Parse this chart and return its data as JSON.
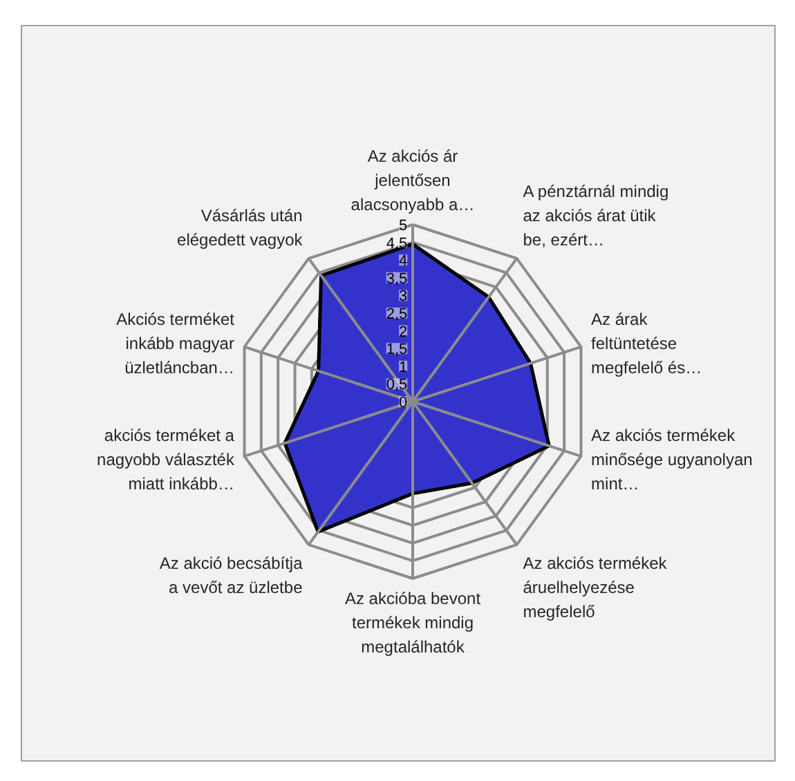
{
  "chart_data": {
    "type": "radar",
    "categories": [
      "Az akciós ár jelentősen alacsonyabb a…",
      "A pénztárnál mindig az akciós árat ütik be, ezért…",
      "Az árak feltüntetése megfelelő és…",
      "Az akciós termékek minősége ugyanolyan mint…",
      "Az akciós termékek áruelhelyezése megfelelő",
      "Az akcióba bevont termékek mindig megtalálhatók",
      "Az akció becsábítja a vevőt az üzletbe",
      "akciós terméket a nagyobb választék miatt inkább…",
      "Akciós terméket inkább magyar üzletláncban…",
      "Vásárlás után elégedett vagyok"
    ],
    "series": [
      {
        "color": "#3333cc",
        "values": [
          4.45,
          3.65,
          3.5,
          4.05,
          2.85,
          2.6,
          4.55,
          3.8,
          2.8,
          4.4
        ]
      }
    ],
    "ylim": [
      0,
      5
    ],
    "yticks": [
      0,
      {
        "value": 0.5,
        "label": "0,5"
      },
      1,
      {
        "value": 1.5,
        "label": "1,5"
      },
      2,
      {
        "value": 2.5,
        "label": "2,5"
      },
      3,
      {
        "value": 3.5,
        "label": "3,5"
      },
      4,
      {
        "value": 4.5,
        "label": "4,5"
      },
      5
    ],
    "grid": true
  }
}
